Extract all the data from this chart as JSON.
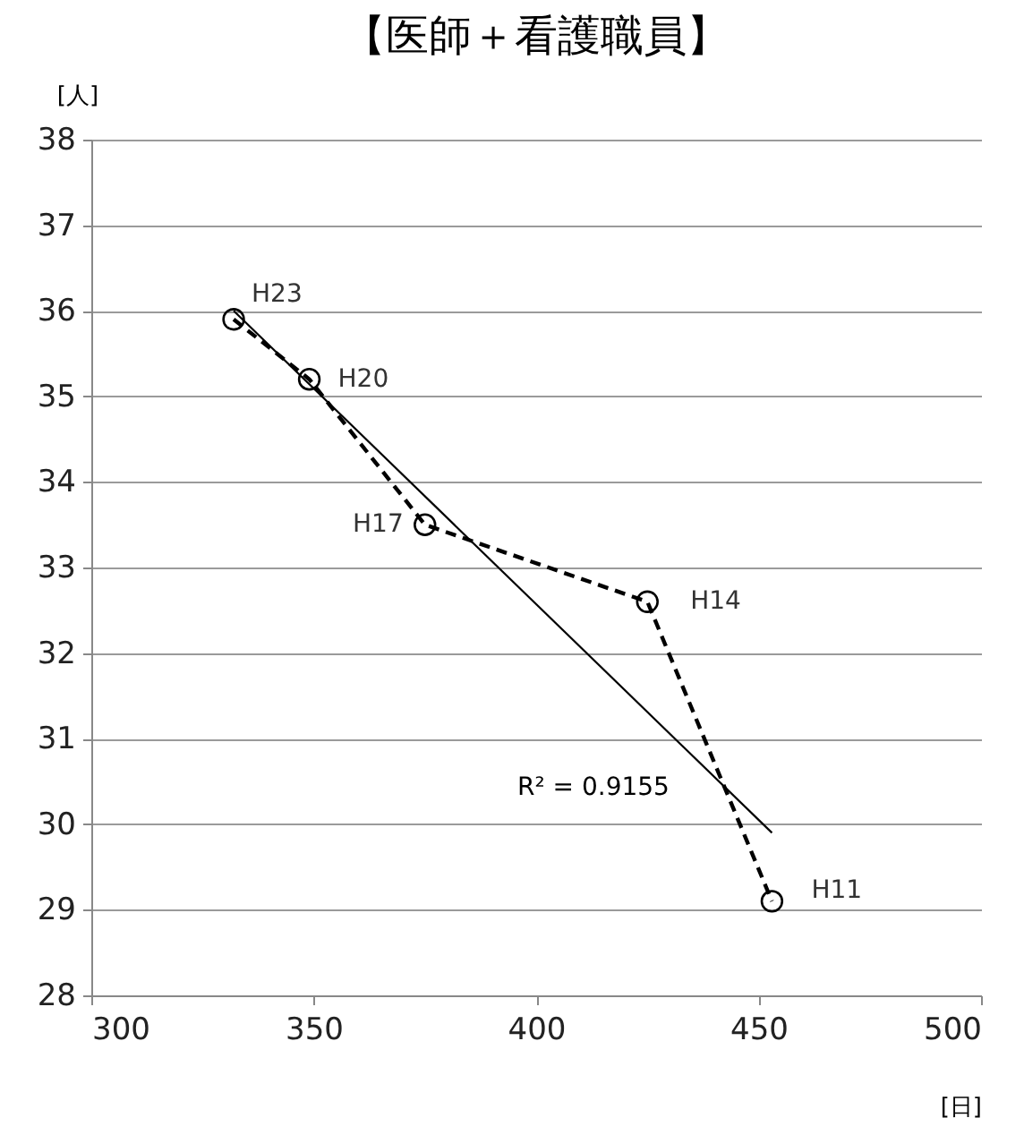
{
  "chart_data": {
    "type": "line",
    "title": "【医師＋看護職員】",
    "xlabel": "[日]",
    "ylabel": "[人]",
    "xlim": [
      300,
      500
    ],
    "xticks": [
      300,
      350,
      400,
      450,
      500
    ],
    "ylim": [
      28,
      38
    ],
    "yticks": [
      28,
      29,
      30,
      31,
      32,
      33,
      34,
      35,
      36,
      37,
      38
    ],
    "grid": "y",
    "series": [
      {
        "color": "#000000",
        "marker": "circle",
        "line_style": "dashed",
        "x": [
          332,
          349,
          375,
          425,
          453
        ],
        "values": [
          35.9,
          35.2,
          33.5,
          32.6,
          29.1
        ]
      },
      {
        "color": "#000000",
        "marker": "none",
        "line_style": "solid",
        "x": [
          332,
          453
        ],
        "values": [
          36.0,
          29.9
        ]
      }
    ],
    "annotations": [
      {
        "text": "H23",
        "x": 332,
        "y": 35.9
      },
      {
        "text": "H20",
        "x": 349,
        "y": 35.2
      },
      {
        "text": "H17",
        "x": 375,
        "y": 33.5
      },
      {
        "text": "H14",
        "x": 425,
        "y": 32.6
      },
      {
        "text": "H11",
        "x": 453,
        "y": 29.1
      },
      "R² = 0.9155"
    ]
  }
}
